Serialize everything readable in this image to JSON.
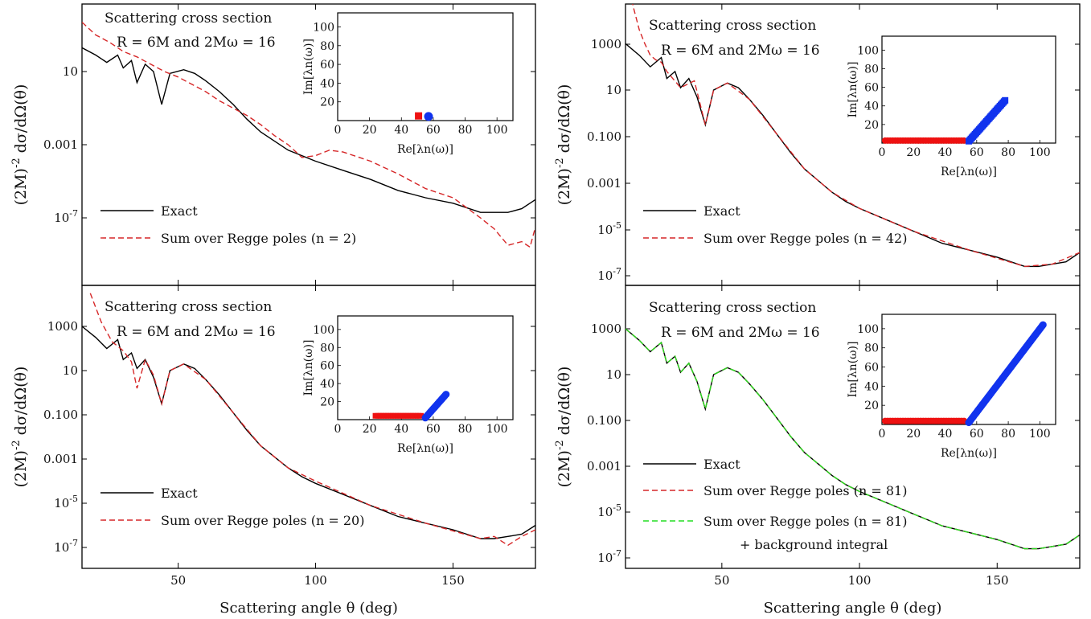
{
  "chart_data": [
    {
      "type": "line",
      "title": "Scattering cross section",
      "annotation": "R = 6M and 2Mω = 16",
      "xlabel": "",
      "ylabel": "(2M)^-2 dσ/dΩ(θ)",
      "xlim": [
        15,
        180
      ],
      "ylim_log10": [
        -9.5,
        3.7
      ],
      "ytick_labels": [
        "10",
        "0.001",
        "10^-7"
      ],
      "xtick_labels": [],
      "yscale": "log",
      "legend_location": "lower-left",
      "series": [
        {
          "name": "Exact",
          "color": "#000000",
          "dash": "solid",
          "x": [
            15,
            20,
            24,
            28,
            30,
            33,
            35,
            38,
            41,
            44,
            47,
            52,
            56,
            60,
            65,
            70,
            75,
            80,
            85,
            90,
            95,
            100,
            110,
            120,
            130,
            140,
            150,
            160,
            170,
            175,
            180
          ],
          "log10_y": [
            2.3,
            1.9,
            1.5,
            1.9,
            1.2,
            1.6,
            0.4,
            1.4,
            1.0,
            -0.8,
            0.9,
            1.1,
            0.9,
            0.5,
            -0.1,
            -0.8,
            -1.6,
            -2.3,
            -2.8,
            -3.3,
            -3.6,
            -3.9,
            -4.4,
            -4.9,
            -5.5,
            -5.9,
            -6.2,
            -6.7,
            -6.7,
            -6.5,
            -6.0
          ]
        },
        {
          "name": "Sum over Regge poles (n = 2)",
          "color": "#d62728",
          "dash": "dashed",
          "x": [
            15,
            20,
            25,
            30,
            35,
            40,
            45,
            50,
            55,
            60,
            65,
            70,
            75,
            80,
            85,
            90,
            95,
            100,
            105,
            110,
            120,
            130,
            140,
            150,
            160,
            165,
            170,
            175,
            178,
            180
          ],
          "log10_y": [
            3.7,
            3.0,
            2.6,
            2.1,
            1.8,
            1.4,
            1.0,
            0.7,
            0.3,
            -0.1,
            -0.6,
            -1.0,
            -1.4,
            -1.9,
            -2.5,
            -3.0,
            -3.7,
            -3.6,
            -3.3,
            -3.4,
            -3.9,
            -4.6,
            -5.4,
            -5.9,
            -7.0,
            -7.6,
            -8.5,
            -8.3,
            -8.6,
            -7.5
          ]
        }
      ],
      "inset": {
        "xlabel": "Re[λn(ω)]",
        "ylabel": "Im[λn(ω)]",
        "xlim": [
          0,
          110
        ],
        "ylim": [
          0,
          115
        ],
        "xtick_labels": [
          "0",
          "20",
          "40",
          "60",
          "80",
          "100"
        ],
        "ytick_labels": [
          "20",
          "40",
          "60",
          "80",
          "100"
        ],
        "red_points": [
          {
            "x": 51,
            "y": 2
          }
        ],
        "blue_points": [
          {
            "x": 55,
            "y": 1
          }
        ]
      }
    },
    {
      "type": "line",
      "title": "Scattering cross section",
      "annotation": "R = 6M and 2Mω = 16",
      "xlabel": "",
      "ylabel": "(2M)^-2 dσ/dΩ(θ)",
      "xlim": [
        15,
        180
      ],
      "ylim_log10": [
        -7.6,
        4.5
      ],
      "ytick_labels": [
        "1000",
        "10",
        "0.100",
        "0.001",
        "10^-5",
        "10^-7"
      ],
      "xtick_labels": [],
      "yscale": "log",
      "legend_location": "lower-left",
      "series": [
        {
          "name": "Exact",
          "color": "#000000",
          "dash": "solid",
          "x": [
            15,
            20,
            24,
            28,
            30,
            33,
            35,
            38,
            41,
            44,
            47,
            52,
            56,
            60,
            65,
            70,
            75,
            80,
            85,
            90,
            95,
            100,
            110,
            120,
            130,
            140,
            150,
            160,
            165,
            170,
            175,
            180
          ],
          "log10_y": [
            3.0,
            2.5,
            2.0,
            2.4,
            1.5,
            1.8,
            1.1,
            1.5,
            0.7,
            -0.5,
            1.0,
            1.3,
            1.1,
            0.6,
            -0.1,
            -0.9,
            -1.7,
            -2.4,
            -2.9,
            -3.4,
            -3.8,
            -4.1,
            -4.6,
            -5.1,
            -5.6,
            -5.9,
            -6.2,
            -6.6,
            -6.6,
            -6.5,
            -6.4,
            -6.0
          ]
        },
        {
          "name": "Sum over Regge poles (n = 42)",
          "color": "#d62728",
          "dash": "dashed",
          "x": [
            15,
            18,
            20,
            22,
            24,
            26,
            28,
            30,
            35,
            40,
            44,
            47,
            52,
            60,
            70,
            80,
            90,
            100,
            120,
            140,
            160,
            170,
            180
          ],
          "log10_y": [
            6.0,
            4.5,
            3.6,
            3.0,
            2.5,
            2.3,
            2.2,
            1.8,
            1.1,
            1.4,
            -0.5,
            1.0,
            1.3,
            0.6,
            -0.9,
            -2.4,
            -3.4,
            -4.1,
            -5.1,
            -5.9,
            -6.6,
            -6.5,
            -6.0
          ]
        }
      ],
      "inset": {
        "xlabel": "Re[λn(ω)]",
        "ylabel": "Im[λn(ω)]",
        "xlim": [
          0,
          110
        ],
        "ylim": [
          0,
          115
        ],
        "xtick_labels": [
          "0",
          "20",
          "40",
          "60",
          "80",
          "100"
        ],
        "ytick_labels": [
          "20",
          "40",
          "60",
          "80",
          "100"
        ],
        "red_range": {
          "from": 2,
          "to": 52,
          "y": 1
        },
        "blue_range": {
          "from": 55,
          "to": 78,
          "y_from": 2,
          "y_to": 46
        }
      }
    },
    {
      "type": "line",
      "title": "Scattering cross section",
      "annotation": "R = 6M and 2Mω = 16",
      "xlabel": "Scattering angle θ (deg)",
      "ylabel": "(2M)^-2 dσ/dΩ(θ)",
      "xlim": [
        15,
        180
      ],
      "ylim_log10": [
        -7.6,
        4.5
      ],
      "ytick_labels": [
        "1000",
        "10",
        "0.100",
        "0.001",
        "10^-5",
        "10^-7"
      ],
      "xtick_labels": [
        "50",
        "100",
        "150"
      ],
      "yscale": "log",
      "legend_location": "lower-left",
      "series": [
        {
          "name": "Exact",
          "color": "#000000",
          "dash": "solid",
          "x": [
            15,
            20,
            24,
            28,
            30,
            33,
            35,
            38,
            41,
            44,
            47,
            52,
            56,
            60,
            65,
            70,
            75,
            80,
            85,
            90,
            95,
            100,
            110,
            120,
            130,
            140,
            150,
            160,
            165,
            170,
            175,
            180
          ],
          "log10_y": [
            3.0,
            2.5,
            2.0,
            2.4,
            1.5,
            1.8,
            1.1,
            1.5,
            0.7,
            -0.5,
            1.0,
            1.3,
            1.1,
            0.6,
            -0.1,
            -0.9,
            -1.7,
            -2.4,
            -2.9,
            -3.4,
            -3.8,
            -4.1,
            -4.6,
            -5.1,
            -5.6,
            -5.9,
            -6.2,
            -6.6,
            -6.6,
            -6.5,
            -6.4,
            -6.0
          ]
        },
        {
          "name": "Sum over Regge poles (n = 20)",
          "color": "#d62728",
          "dash": "dashed",
          "x": [
            18,
            22,
            26,
            30,
            33,
            35,
            38,
            41,
            44,
            47,
            52,
            60,
            70,
            80,
            90,
            100,
            120,
            140,
            160,
            165,
            170,
            175,
            180
          ],
          "log10_y": [
            4.5,
            3.2,
            2.3,
            1.9,
            1.4,
            0.2,
            1.5,
            0.8,
            -0.5,
            1.0,
            1.3,
            0.6,
            -0.9,
            -2.4,
            -3.4,
            -4.0,
            -5.1,
            -5.9,
            -6.6,
            -6.5,
            -6.9,
            -6.5,
            -6.2
          ]
        }
      ],
      "inset": {
        "xlabel": "Re[λn(ω)]",
        "ylabel": "Im[λn(ω)]",
        "xlim": [
          0,
          110
        ],
        "ylim": [
          0,
          115
        ],
        "xtick_labels": [
          "0",
          "20",
          "40",
          "60",
          "80",
          "100"
        ],
        "ytick_labels": [
          "20",
          "40",
          "60",
          "80",
          "100"
        ],
        "red_range": {
          "from": 24,
          "to": 52,
          "y": 2
        },
        "blue_range": {
          "from": 55,
          "to": 68,
          "y_from": 2,
          "y_to": 28
        }
      }
    },
    {
      "type": "line",
      "title": "Scattering cross section",
      "annotation": "R = 6M and 2Mω = 16",
      "xlabel": "Scattering angle θ (deg)",
      "ylabel": "(2M)^-2 dσ/dΩ(θ)",
      "xlim": [
        15,
        180
      ],
      "ylim_log10": [
        -7.6,
        4.5
      ],
      "ytick_labels": [
        "1000",
        "10",
        "0.100",
        "0.001",
        "10^-5",
        "10^-7"
      ],
      "xtick_labels": [
        "50",
        "100",
        "150"
      ],
      "yscale": "log",
      "legend_location": "lower-left",
      "legend_extra": "+ background integral",
      "series": [
        {
          "name": "Exact",
          "color": "#000000",
          "dash": "solid",
          "x": [
            15,
            20,
            24,
            28,
            30,
            33,
            35,
            38,
            41,
            44,
            47,
            52,
            56,
            60,
            65,
            70,
            75,
            80,
            85,
            90,
            95,
            100,
            110,
            120,
            130,
            140,
            150,
            160,
            165,
            170,
            175,
            180
          ],
          "log10_y": [
            3.0,
            2.5,
            2.0,
            2.4,
            1.5,
            1.8,
            1.1,
            1.5,
            0.7,
            -0.5,
            1.0,
            1.3,
            1.1,
            0.6,
            -0.1,
            -0.9,
            -1.7,
            -2.4,
            -2.9,
            -3.4,
            -3.8,
            -4.1,
            -4.6,
            -5.1,
            -5.6,
            -5.9,
            -6.2,
            -6.6,
            -6.6,
            -6.5,
            -6.4,
            -6.0
          ]
        },
        {
          "name": "Sum over Regge poles (n = 81)",
          "color": "#d62728",
          "dash": "dashed",
          "x": [
            15,
            20,
            24,
            28,
            30,
            33,
            35,
            38,
            41,
            44,
            47,
            52,
            56,
            60,
            65,
            70,
            75,
            80,
            85,
            90,
            95,
            100,
            110,
            120,
            130,
            140,
            150,
            160,
            165,
            170,
            175,
            180
          ],
          "log10_y": [
            3.0,
            2.5,
            2.0,
            2.4,
            1.5,
            1.8,
            1.1,
            1.5,
            0.7,
            -0.5,
            1.0,
            1.3,
            1.1,
            0.6,
            -0.1,
            -0.9,
            -1.7,
            -2.4,
            -2.9,
            -3.4,
            -3.8,
            -4.1,
            -4.6,
            -5.1,
            -5.6,
            -5.9,
            -6.2,
            -6.6,
            -6.6,
            -6.5,
            -6.4,
            -6.0
          ]
        },
        {
          "name": "Sum over Regge poles (n = 81)",
          "color": "#22dd22",
          "dash": "dashed",
          "x": [
            15,
            20,
            24,
            28,
            30,
            33,
            35,
            38,
            41,
            44,
            47,
            52,
            56,
            60,
            65,
            70,
            75,
            80,
            85,
            90,
            95,
            100,
            110,
            120,
            130,
            140,
            150,
            160,
            165,
            170,
            175,
            180
          ],
          "log10_y": [
            3.0,
            2.5,
            2.0,
            2.4,
            1.5,
            1.8,
            1.1,
            1.5,
            0.7,
            -0.5,
            1.0,
            1.3,
            1.1,
            0.6,
            -0.1,
            -0.9,
            -1.7,
            -2.4,
            -2.9,
            -3.4,
            -3.8,
            -4.1,
            -4.6,
            -5.1,
            -5.6,
            -5.9,
            -6.2,
            -6.6,
            -6.6,
            -6.5,
            -6.4,
            -6.0
          ]
        }
      ],
      "inset": {
        "xlabel": "Re[λn(ω)]",
        "ylabel": "Im[λn(ω)]",
        "xlim": [
          0,
          110
        ],
        "ylim": [
          0,
          115
        ],
        "xtick_labels": [
          "0",
          "20",
          "40",
          "60",
          "80",
          "100"
        ],
        "ytick_labels": [
          "20",
          "40",
          "60",
          "80",
          "100"
        ],
        "red_range": {
          "from": 2,
          "to": 52,
          "y": 2
        },
        "blue_range": {
          "from": 55,
          "to": 102,
          "y_from": 2,
          "y_to": 104
        }
      }
    }
  ],
  "colors": {
    "exact": "#000000",
    "regge": "#d62728",
    "background": "#22dd22",
    "red_poles": "#ee1111",
    "blue_poles": "#1133ee"
  }
}
